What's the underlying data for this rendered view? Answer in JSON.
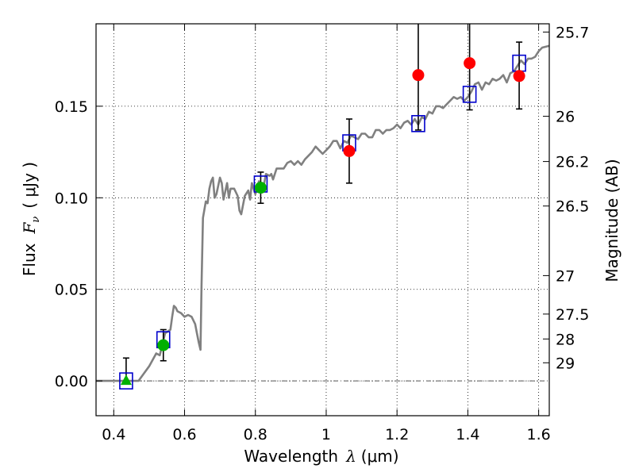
{
  "chart_data": {
    "type": "scatter",
    "xlabel": "Wavelength",
    "xlabel_symbol": "λ",
    "xlabel_unit": "(μm)",
    "ylabel": "Flux",
    "ylabel_symbol": "F",
    "ylabel_subscript": "ν",
    "ylabel_unit": "( μJy )",
    "right_ylabel": "Magnitude (AB)",
    "xlim": [
      0.35,
      1.63
    ],
    "ylim": [
      -0.019,
      0.195
    ],
    "x_ticks": [
      0.4,
      0.6,
      0.8,
      1.0,
      1.2,
      1.4,
      1.6
    ],
    "x_tick_labels": [
      "0.4",
      "0.6",
      "0.8",
      "1",
      "1.2",
      "1.4",
      "1.6"
    ],
    "y_ticks": [
      0.0,
      0.05,
      0.1,
      0.15
    ],
    "y_tick_labels": [
      "0.00",
      "0.05",
      "0.10",
      "0.15"
    ],
    "mag_ticks": [
      {
        "flux": 0.1905,
        "label": "25.7"
      },
      {
        "flux": 0.1445,
        "label": "26"
      },
      {
        "flux": 0.1198,
        "label": "26.2"
      },
      {
        "flux": 0.0955,
        "label": "26.5"
      },
      {
        "flux": 0.0575,
        "label": "27"
      },
      {
        "flux": 0.0365,
        "label": "27.5"
      },
      {
        "flux": 0.0229,
        "label": "28"
      },
      {
        "flux": 0.0099,
        "label": "29"
      }
    ],
    "grid": true,
    "zero_line": true,
    "sed_model": {
      "name": "model spectrum",
      "color": "#808080",
      "x": [
        0.35,
        0.47,
        0.485,
        0.5,
        0.52,
        0.53,
        0.545,
        0.56,
        0.565,
        0.57,
        0.575,
        0.58,
        0.59,
        0.6,
        0.61,
        0.62,
        0.63,
        0.635,
        0.64,
        0.645,
        0.648,
        0.652,
        0.66,
        0.665,
        0.67,
        0.675,
        0.68,
        0.685,
        0.69,
        0.7,
        0.705,
        0.71,
        0.72,
        0.725,
        0.73,
        0.74,
        0.75,
        0.755,
        0.76,
        0.77,
        0.78,
        0.785,
        0.79,
        0.8,
        0.81,
        0.82,
        0.83,
        0.84,
        0.845,
        0.85,
        0.86,
        0.87,
        0.88,
        0.89,
        0.9,
        0.91,
        0.92,
        0.93,
        0.94,
        0.95,
        0.96,
        0.97,
        0.98,
        0.99,
        1.0,
        1.01,
        1.02,
        1.03,
        1.04,
        1.05,
        1.06,
        1.07,
        1.08,
        1.09,
        1.1,
        1.11,
        1.12,
        1.13,
        1.14,
        1.15,
        1.16,
        1.17,
        1.18,
        1.19,
        1.2,
        1.21,
        1.22,
        1.23,
        1.24,
        1.25,
        1.26,
        1.27,
        1.28,
        1.29,
        1.3,
        1.31,
        1.32,
        1.33,
        1.34,
        1.35,
        1.36,
        1.37,
        1.38,
        1.39,
        1.4,
        1.41,
        1.42,
        1.43,
        1.44,
        1.45,
        1.46,
        1.47,
        1.48,
        1.49,
        1.5,
        1.51,
        1.52,
        1.53,
        1.54,
        1.55,
        1.56,
        1.57,
        1.58,
        1.59,
        1.6,
        1.61,
        1.63
      ],
      "y": [
        0.0,
        0.0,
        0.004,
        0.008,
        0.015,
        0.014,
        0.026,
        0.028,
        0.035,
        0.041,
        0.04,
        0.038,
        0.037,
        0.035,
        0.036,
        0.035,
        0.031,
        0.026,
        0.021,
        0.017,
        0.052,
        0.089,
        0.098,
        0.097,
        0.105,
        0.109,
        0.111,
        0.1,
        0.102,
        0.111,
        0.108,
        0.099,
        0.108,
        0.1,
        0.105,
        0.105,
        0.101,
        0.093,
        0.091,
        0.101,
        0.104,
        0.099,
        0.108,
        0.102,
        0.109,
        0.103,
        0.113,
        0.112,
        0.113,
        0.11,
        0.116,
        0.116,
        0.116,
        0.119,
        0.12,
        0.118,
        0.12,
        0.118,
        0.121,
        0.123,
        0.125,
        0.128,
        0.126,
        0.124,
        0.126,
        0.128,
        0.131,
        0.131,
        0.127,
        0.131,
        0.13,
        0.134,
        0.133,
        0.132,
        0.135,
        0.135,
        0.133,
        0.133,
        0.137,
        0.137,
        0.135,
        0.137,
        0.137,
        0.138,
        0.14,
        0.138,
        0.141,
        0.142,
        0.14,
        0.143,
        0.14,
        0.144,
        0.143,
        0.147,
        0.146,
        0.15,
        0.15,
        0.149,
        0.151,
        0.153,
        0.155,
        0.154,
        0.155,
        0.153,
        0.155,
        0.158,
        0.162,
        0.163,
        0.159,
        0.163,
        0.162,
        0.165,
        0.164,
        0.165,
        0.167,
        0.163,
        0.168,
        0.169,
        0.172,
        0.175,
        0.173,
        0.176,
        0.176,
        0.177,
        0.18,
        0.182,
        0.183
      ]
    },
    "model_bands": {
      "name": "model photometry",
      "color": "#0000cc",
      "x": [
        0.435,
        0.54,
        0.815,
        1.065,
        1.26,
        1.405,
        1.545
      ],
      "y": [
        0.0,
        0.0225,
        0.1075,
        0.13,
        0.1405,
        0.1565,
        0.1735
      ]
    },
    "observed": {
      "name": "observed photometry",
      "points": [
        {
          "x": 0.435,
          "y": 0.0,
          "yerr_low": 0.0,
          "yerr_high": 0.0125,
          "marker": "triangle",
          "color": "#00b000"
        },
        {
          "x": 0.54,
          "y": 0.0195,
          "yerr_low": 0.0085,
          "yerr_high": 0.0085,
          "marker": "circle",
          "color": "#00b000"
        },
        {
          "x": 0.815,
          "y": 0.1055,
          "yerr_low": 0.0085,
          "yerr_high": 0.0085,
          "marker": "circle",
          "color": "#00b000"
        },
        {
          "x": 1.065,
          "y": 0.1255,
          "yerr_low": 0.0175,
          "yerr_high": 0.0175,
          "marker": "circle",
          "color": "#ff0000"
        },
        {
          "x": 1.26,
          "y": 0.167,
          "yerr_low": 0.03,
          "yerr_high": 0.05,
          "marker": "circle",
          "color": "#ff0000"
        },
        {
          "x": 1.405,
          "y": 0.1735,
          "yerr_low": 0.0255,
          "yerr_high": 0.03,
          "marker": "circle",
          "color": "#ff0000"
        },
        {
          "x": 1.545,
          "y": 0.1665,
          "yerr_low": 0.018,
          "yerr_high": 0.0185,
          "marker": "circle",
          "color": "#ff0000"
        }
      ]
    }
  }
}
